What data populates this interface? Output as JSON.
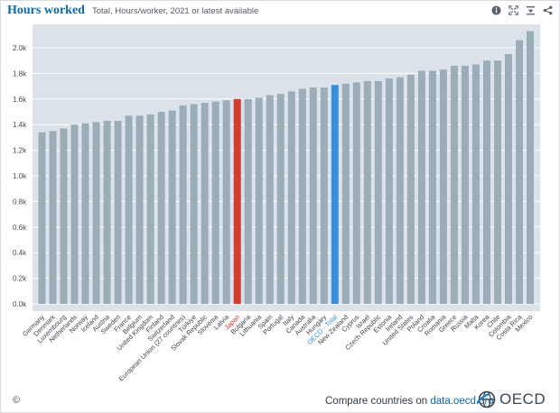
{
  "header": {
    "title": "Hours worked",
    "subtitle": "Total, Hours/worker, 2021 or latest available"
  },
  "toolbar": {
    "info_icon": "info-icon",
    "fullscreen_icon": "fullscreen-icon",
    "download_icon": "download-icon",
    "share_icon": "share-icon"
  },
  "footer": {
    "copyright": "©",
    "compare_prefix": "Compare countries on ",
    "compare_link": "data.oecd.org",
    "logo_text": "OECD"
  },
  "colors": {
    "bar": "#9aadb9",
    "highlight_japan": "#d53b30",
    "highlight_oecd": "#3a8fdc",
    "plot_background": "#dbe2e9",
    "title": "#0b68af"
  },
  "chart_data": {
    "type": "bar",
    "title": "Hours worked",
    "subtitle": "Total, Hours/worker, 2021 or latest available",
    "xlabel": "",
    "ylabel": "",
    "ylim": [
      0,
      2200
    ],
    "yticks": [
      0,
      200,
      400,
      600,
      800,
      1000,
      1200,
      1400,
      1600,
      1800,
      2000
    ],
    "ytick_labels": [
      "0.0k",
      "0.2k",
      "0.4k",
      "0.6k",
      "0.8k",
      "1.0k",
      "1.2k",
      "1.4k",
      "1.6k",
      "1.8k",
      "2.0k"
    ],
    "grid": true,
    "categories": [
      "Germany",
      "Denmark",
      "Luxembourg",
      "Netherlands",
      "Norway",
      "Iceland",
      "Austria",
      "Sweden",
      "France",
      "Belgium",
      "United Kingdom",
      "Finland",
      "Switzerland",
      "European Union (27 countries)",
      "Türkiye",
      "Slovak Republic",
      "Slovenia",
      "Latvia",
      "Japan",
      "Bulgaria",
      "Lithuania",
      "Spain",
      "Portugal",
      "Italy",
      "Canada",
      "Australia",
      "Hungary",
      "OECD - Total",
      "New Zealand",
      "Cyprus",
      "Israel",
      "Czech Republic",
      "Estonia",
      "Ireland",
      "United States",
      "Poland",
      "Croatia",
      "Romania",
      "Greece",
      "Russia",
      "Malta",
      "Korea",
      "Chile",
      "Colombia",
      "Costa Rica",
      "Mexico"
    ],
    "values": [
      1340,
      1350,
      1370,
      1400,
      1410,
      1420,
      1430,
      1430,
      1470,
      1470,
      1480,
      1500,
      1510,
      1550,
      1560,
      1570,
      1580,
      1590,
      1600,
      1600,
      1610,
      1630,
      1640,
      1660,
      1680,
      1690,
      1690,
      1710,
      1720,
      1730,
      1740,
      1740,
      1760,
      1770,
      1790,
      1820,
      1820,
      1830,
      1860,
      1860,
      1870,
      1900,
      1900,
      1950,
      2060,
      2130
    ],
    "highlighted": {
      "Japan": "#d53b30",
      "OECD - Total": "#3a8fdc"
    },
    "label_colors": {
      "Japan": "#d53b30",
      "OECD - Total": "#3a8fdc"
    }
  }
}
